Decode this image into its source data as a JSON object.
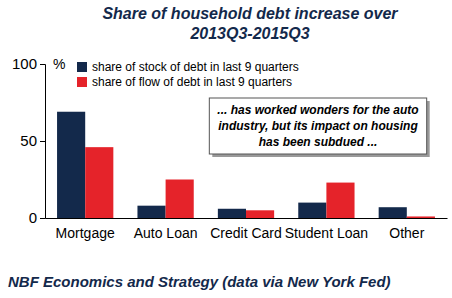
{
  "chart_data": {
    "type": "bar",
    "title": "Share of household debt increase over 2013Q3-2015Q3",
    "y_label": "%",
    "categories": [
      "Mortgage",
      "Auto Loan",
      "Credit Card",
      "Student Loan",
      "Other"
    ],
    "series": [
      {
        "name": "share of stock of debt in last 9 quarters",
        "color": "#13294b",
        "values": [
          69,
          8,
          6,
          10,
          7
        ]
      },
      {
        "name": "share of flow of debt in last 9 quarters",
        "color": "#e5232a",
        "values": [
          46,
          25,
          5,
          23,
          1
        ]
      }
    ],
    "ylim": [
      0,
      100
    ],
    "yticks": [
      0,
      50,
      100
    ],
    "grid": false,
    "legend": "upper left",
    "annotation": "... has worked wonders for the auto industry, but its impact on housing has been subdued ...",
    "source": "NBF Economics and Strategy (data via New York Fed)"
  }
}
